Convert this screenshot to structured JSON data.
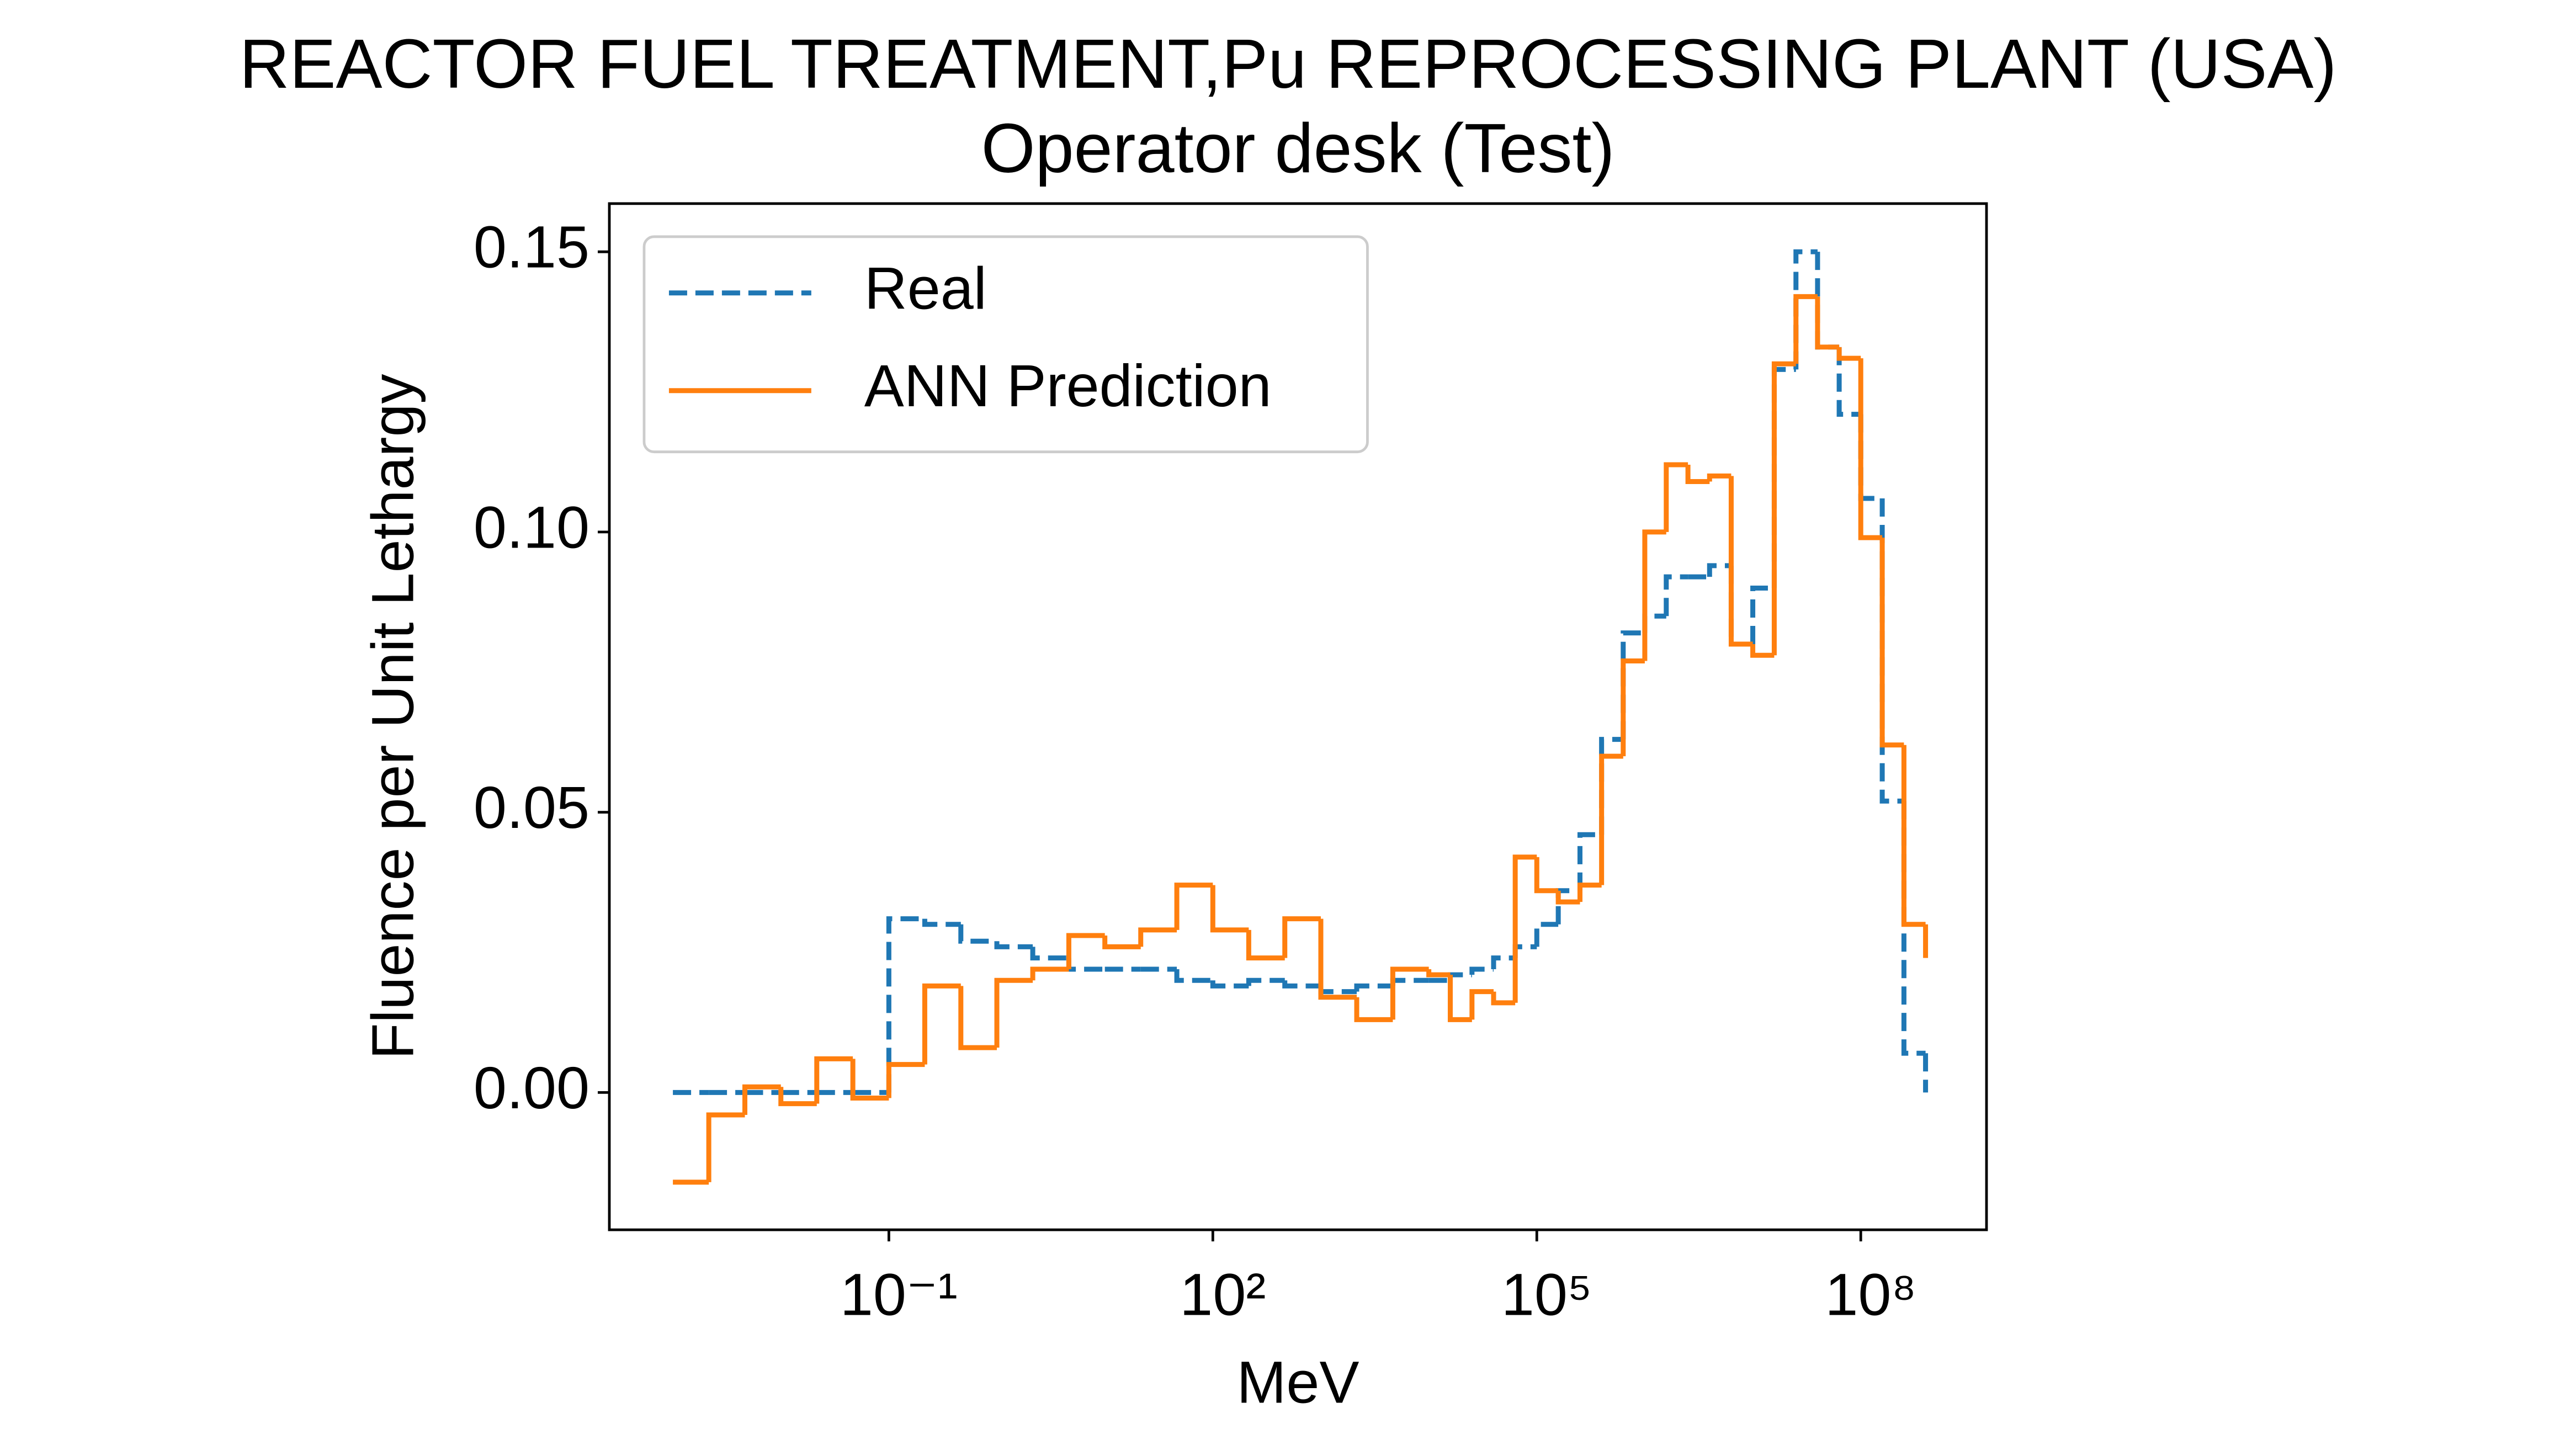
{
  "chart_data": {
    "type": "step",
    "title": "REACTOR FUEL TREATMENT,Pu REPROCESSING PLANT (USA)",
    "subtitle": "Operator desk (Test)",
    "xlabel": "MeV",
    "ylabel": "Fluence per Unit Lethargy",
    "xscale": "log",
    "xlim": [
      0.000258,
      1460000000
    ],
    "ylim": [
      -0.0245,
      0.1586
    ],
    "xticks": [
      {
        "value": 0.1,
        "label": "10⁻¹"
      },
      {
        "value": 100,
        "label": "10²"
      },
      {
        "value": 100000,
        "label": "10⁵"
      },
      {
        "value": 100000000,
        "label": "10⁸"
      }
    ],
    "yticks": [
      {
        "value": 0,
        "label": "0.00"
      },
      0.05,
      {
        "value": 0.1,
        "label": "0.10"
      },
      0.15
    ],
    "legend": "upper left",
    "x": [
      0.001,
      0.00215,
      0.00464,
      0.01,
      0.0215,
      0.0464,
      0.1,
      0.215,
      0.464,
      1,
      2.15,
      4.64,
      10,
      21.5,
      46.4,
      100,
      215,
      464,
      1000,
      2150,
      4640,
      10000,
      15800,
      25100,
      39800,
      63100,
      100000,
      158000,
      251000,
      398000,
      631000,
      1000000,
      1580000,
      2510000,
      3980000,
      6310000,
      10000000,
      15800000,
      25100000,
      39800000,
      63100000,
      100000000,
      158000000,
      251000000,
      398000000
    ],
    "series": [
      {
        "name": "Real",
        "color": "#1f77b4",
        "dash": true,
        "values": [
          0,
          0,
          0,
          0,
          0,
          0,
          0.031,
          0.03,
          0.027,
          0.026,
          0.024,
          0.022,
          0.022,
          0.022,
          0.02,
          0.019,
          0.02,
          0.019,
          0.018,
          0.019,
          0.02,
          0.02,
          0.021,
          0.022,
          0.024,
          0.026,
          0.03,
          0.036,
          0.046,
          0.063,
          0.082,
          0.085,
          0.092,
          0.092,
          0.094,
          0.08,
          0.09,
          0.129,
          0.15,
          0.133,
          0.121,
          0.106,
          0.052,
          0.007,
          0
        ]
      },
      {
        "name": "ANN Prediction",
        "color": "#ff7f0e",
        "dash": false,
        "values": [
          -0.016,
          -0.004,
          0.001,
          -0.002,
          0.006,
          -0.001,
          0.005,
          0.019,
          0.008,
          0.02,
          0.022,
          0.028,
          0.026,
          0.029,
          0.037,
          0.029,
          0.024,
          0.031,
          0.017,
          0.013,
          0.022,
          0.021,
          0.013,
          0.018,
          0.016,
          0.042,
          0.036,
          0.034,
          0.037,
          0.06,
          0.077,
          0.1,
          0.112,
          0.109,
          0.11,
          0.08,
          0.078,
          0.13,
          0.142,
          0.133,
          0.131,
          0.099,
          0.062,
          0.03,
          0.024
        ]
      }
    ]
  }
}
